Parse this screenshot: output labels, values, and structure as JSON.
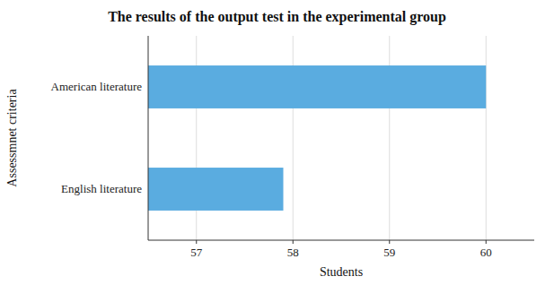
{
  "chart_data": {
    "type": "bar",
    "orientation": "horizontal",
    "title": "The results of the output test in the experimental group",
    "categories": [
      "English literature",
      "American literature"
    ],
    "values": [
      57.9,
      60
    ],
    "color": "#5aace0",
    "xlabel": "Students",
    "ylabel": "Assessmnet criteria",
    "xlim": [
      56.5,
      60.5
    ],
    "xticks": [
      57,
      58,
      59,
      60
    ],
    "grid": true
  }
}
